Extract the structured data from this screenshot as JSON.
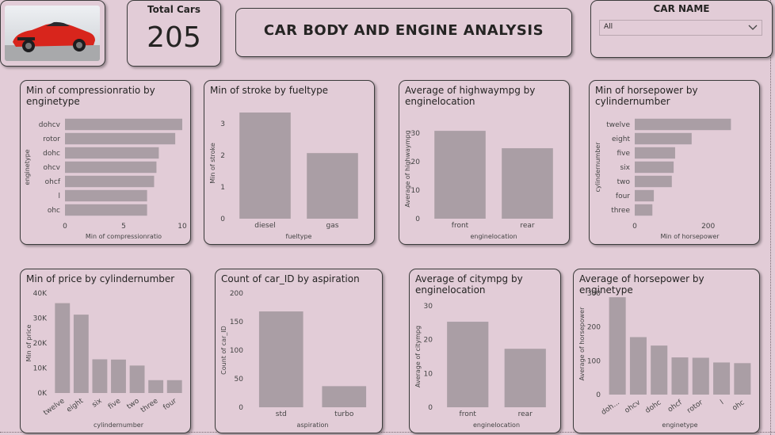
{
  "kpi": {
    "label": "Total Cars",
    "value": "205"
  },
  "dashboard_title": "CAR BODY AND ENGINE ANALYSIS",
  "slicer": {
    "label": "CAR NAME",
    "value": "All"
  },
  "colors": {
    "bar": "#aa9ea5",
    "background": "#e2ccd7",
    "border": "#3b3b3b"
  },
  "chart_data": [
    {
      "id": "c1",
      "type": "bar",
      "orientation": "horizontal",
      "title": "Min of compressionratio by enginetype",
      "categories": [
        "dohcv",
        "rotor",
        "dohc",
        "ohcv",
        "ohcf",
        "l",
        "ohc"
      ],
      "values": [
        10.0,
        9.4,
        8.0,
        7.8,
        7.6,
        7.0,
        7.0
      ],
      "xlabel": "Min of compressionratio",
      "ylabel": "enginetype",
      "xlim": [
        0,
        10
      ],
      "ticks": [
        0,
        5,
        10
      ],
      "tick_labels": [
        "0",
        "5",
        "10"
      ],
      "grid": false
    },
    {
      "id": "c2",
      "type": "bar",
      "title": "Min of stroke by fueltype",
      "categories": [
        "diesel",
        "gas"
      ],
      "values": [
        3.35,
        2.07
      ],
      "xlabel": "fueltype",
      "ylabel": "Min of stroke",
      "ylim": [
        0,
        3.5
      ],
      "ticks": [
        0,
        1,
        2,
        3
      ],
      "tick_labels": [
        "0",
        "1",
        "2",
        "3"
      ],
      "grid": false
    },
    {
      "id": "c3",
      "type": "bar",
      "title": "Average of highwaympg by enginelocation",
      "categories": [
        "front",
        "rear"
      ],
      "values": [
        30.8,
        24.7
      ],
      "xlabel": "enginelocation",
      "ylabel": "Average of highwaympg",
      "ylim": [
        0,
        35
      ],
      "ticks": [
        0,
        10,
        20,
        30
      ],
      "tick_labels": [
        "0",
        "10",
        "20",
        "30"
      ],
      "grid": false
    },
    {
      "id": "c4",
      "type": "bar",
      "orientation": "horizontal",
      "title": "Min of horsepower by cylindernumber",
      "categories": [
        "twelve",
        "eight",
        "five",
        "six",
        "two",
        "four",
        "three"
      ],
      "values": [
        262,
        155,
        110,
        106,
        101,
        52,
        48
      ],
      "xlabel": "Min of horsepower",
      "ylabel": "cylindernumber",
      "xlim": [
        0,
        300
      ],
      "ticks": [
        0,
        200
      ],
      "tick_labels": [
        "0",
        "200"
      ],
      "grid": false
    },
    {
      "id": "c5",
      "type": "bar",
      "title": "Min of price by cylindernumber",
      "categories": [
        "twelve",
        "eight",
        "six",
        "five",
        "two",
        "three",
        "four"
      ],
      "values": [
        36000,
        31400,
        13500,
        13400,
        11000,
        5150,
        5150
      ],
      "xlabel": "cylindernumber",
      "ylabel": "Min of price",
      "ylim": [
        0,
        40000
      ],
      "ticks": [
        0,
        10000,
        20000,
        30000,
        40000
      ],
      "tick_labels": [
        "0K",
        "10K",
        "20K",
        "30K",
        "40K"
      ],
      "rotate_labels": true,
      "grid": false
    },
    {
      "id": "c6",
      "type": "bar",
      "title": "Count of car_ID by aspiration",
      "categories": [
        "std",
        "turbo"
      ],
      "values": [
        168,
        37
      ],
      "xlabel": "aspiration",
      "ylabel": "Count of car_ID",
      "ylim": [
        0,
        200
      ],
      "ticks": [
        0,
        50,
        100,
        150,
        200
      ],
      "tick_labels": [
        "0",
        "50",
        "100",
        "150",
        "200"
      ],
      "grid": false
    },
    {
      "id": "c7",
      "type": "bar",
      "title": "Average of citympg by enginelocation",
      "categories": [
        "front",
        "rear"
      ],
      "values": [
        25.3,
        17.3
      ],
      "xlabel": "enginelocation",
      "ylabel": "Average of citympg",
      "ylim": [
        0,
        30
      ],
      "ticks": [
        0,
        10,
        20,
        30
      ],
      "tick_labels": [
        "0",
        "10",
        "20",
        "30"
      ],
      "grid": false
    },
    {
      "id": "c8",
      "type": "bar",
      "title": "Average of horsepower by enginetype",
      "categories": [
        "doh...",
        "ohcv",
        "dohc",
        "ohcf",
        "rotor",
        "l",
        "ohc"
      ],
      "values": [
        288,
        170,
        145,
        110,
        109,
        95,
        93
      ],
      "xlabel": "enginetype",
      "ylabel": "Average of horsepower",
      "ylim": [
        0,
        300
      ],
      "ticks": [
        0,
        100,
        200,
        300
      ],
      "tick_labels": [
        "0",
        "100",
        "200",
        "300"
      ],
      "rotate_labels": true,
      "grid": false
    }
  ]
}
